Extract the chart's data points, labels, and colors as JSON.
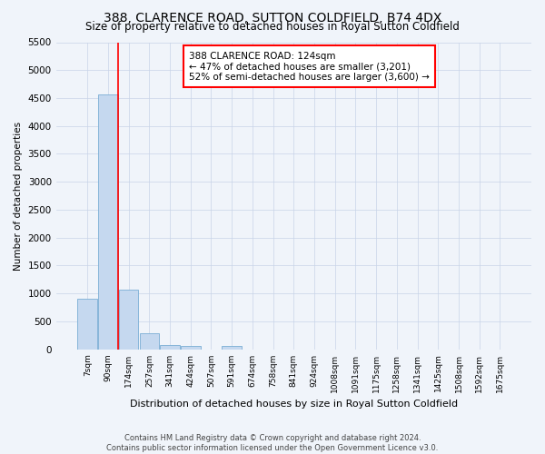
{
  "title": "388, CLARENCE ROAD, SUTTON COLDFIELD, B74 4DX",
  "subtitle": "Size of property relative to detached houses in Royal Sutton Coldfield",
  "xlabel": "Distribution of detached houses by size in Royal Sutton Coldfield",
  "ylabel": "Number of detached properties",
  "footer_line1": "Contains HM Land Registry data © Crown copyright and database right 2024.",
  "footer_line2": "Contains public sector information licensed under the Open Government Licence v3.0.",
  "categories": [
    "7sqm",
    "90sqm",
    "174sqm",
    "257sqm",
    "341sqm",
    "424sqm",
    "507sqm",
    "591sqm",
    "674sqm",
    "758sqm",
    "841sqm",
    "924sqm",
    "1008sqm",
    "1091sqm",
    "1175sqm",
    "1258sqm",
    "1341sqm",
    "1425sqm",
    "1508sqm",
    "1592sqm",
    "1675sqm"
  ],
  "values": [
    900,
    4560,
    1070,
    295,
    75,
    60,
    0,
    60,
    0,
    0,
    0,
    0,
    0,
    0,
    0,
    0,
    0,
    0,
    0,
    0,
    0
  ],
  "bar_color": "#c5d8ef",
  "bar_edge_color": "#7aaed4",
  "red_line_x": 1.48,
  "annotation_title": "388 CLARENCE ROAD: 124sqm",
  "annotation_line1": "← 47% of detached houses are smaller (3,201)",
  "annotation_line2": "52% of semi-detached houses are larger (3,600) →",
  "ylim": [
    0,
    5500
  ],
  "yticks": [
    0,
    500,
    1000,
    1500,
    2000,
    2500,
    3000,
    3500,
    4000,
    4500,
    5000,
    5500
  ],
  "background_color": "#f0f4fa",
  "grid_color": "#c8d4e8",
  "title_fontsize": 10,
  "subtitle_fontsize": 8.5
}
